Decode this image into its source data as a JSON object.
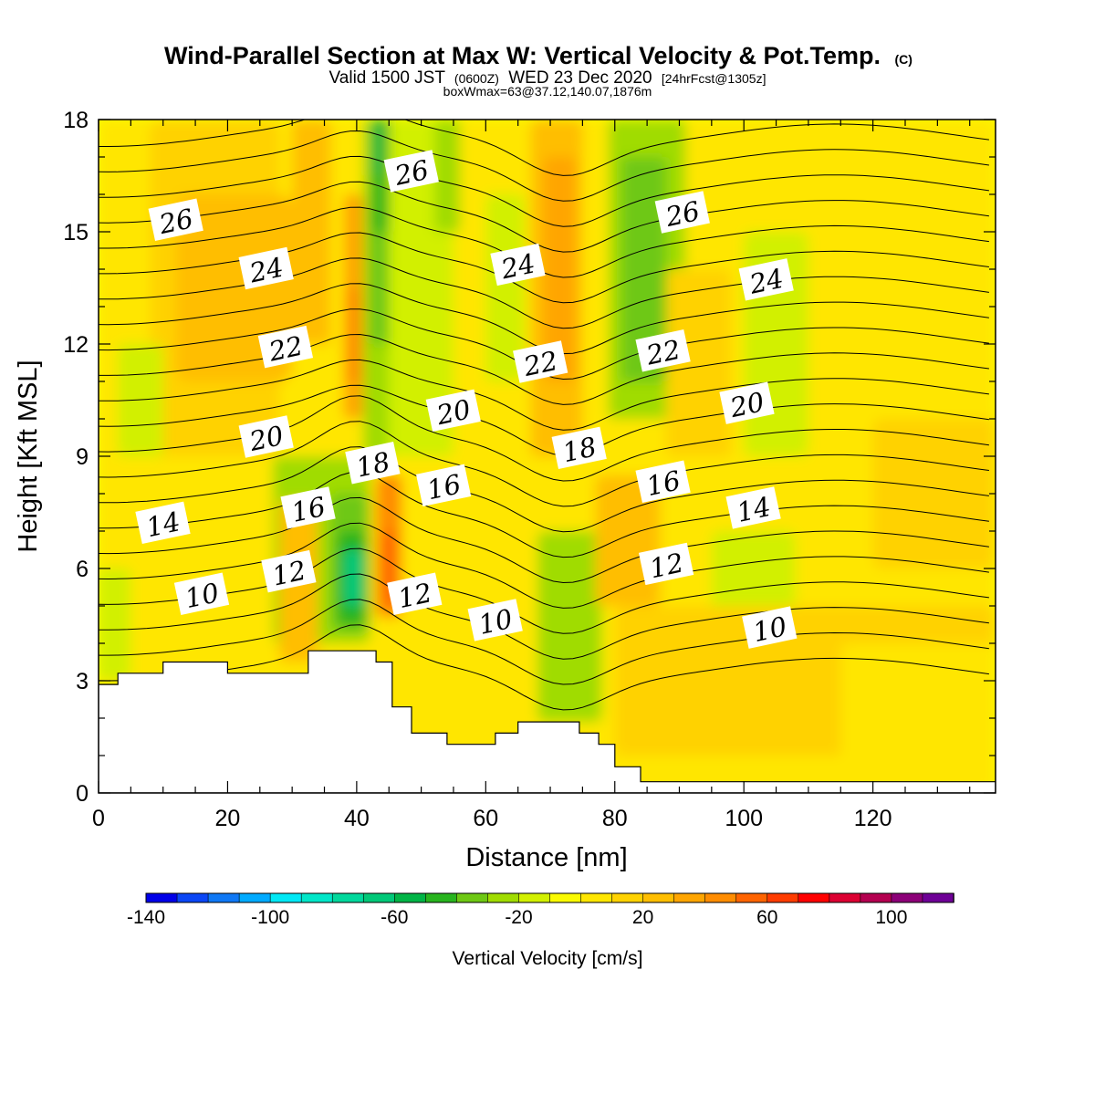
{
  "header": {
    "title_main": "Wind-Parallel Section at Max W: Vertical Velocity & Pot.Temp.",
    "title_mark": "(C)",
    "valid_a": "Valid 1500 JST",
    "valid_z": "(0600Z)",
    "valid_b": "WED 23 Dec 2020",
    "valid_fcst": "[24hrFcst@1305z]",
    "boxinfo": "boxWmax=63@37.12,140.07,1876m"
  },
  "chart_data": {
    "type": "heatmap",
    "xlabel": "Distance [nm]",
    "ylabel": "Height [Kft MSL]",
    "xlim": [
      0,
      139
    ],
    "ylim": [
      0,
      18
    ],
    "x_ticks": [
      0,
      20,
      40,
      60,
      80,
      100,
      120
    ],
    "y_ticks": [
      0,
      3,
      6,
      9,
      12,
      15,
      18
    ],
    "colorbar": {
      "label": "Vertical Velocity [cm/s]",
      "min": -140,
      "max": 120,
      "step": 10,
      "tick_values": [
        -140,
        -100,
        -60,
        -20,
        20,
        60,
        100
      ],
      "colors": [
        "#0000e8",
        "#0a46f5",
        "#0f78f5",
        "#00aaff",
        "#00e8f5",
        "#00e6c8",
        "#00d89c",
        "#00c878",
        "#00b446",
        "#28b41e",
        "#6ec814",
        "#a0dc00",
        "#d2f000",
        "#fafa00",
        "#ffe600",
        "#ffd200",
        "#ffbe00",
        "#ffa500",
        "#ff8c00",
        "#ff6400",
        "#ff3c00",
        "#ff0000",
        "#dc0032",
        "#b40050",
        "#8c0078",
        "#6e0096"
      ]
    },
    "theta_contour_labels": [
      {
        "value": "26",
        "x": 12,
        "y": 15.3
      },
      {
        "value": "24",
        "x": 26,
        "y": 14.0
      },
      {
        "value": "22",
        "x": 29,
        "y": 11.9
      },
      {
        "value": "20",
        "x": 26,
        "y": 9.5
      },
      {
        "value": "16",
        "x": 32.5,
        "y": 7.6
      },
      {
        "value": "14",
        "x": 10,
        "y": 7.2
      },
      {
        "value": "12",
        "x": 29.5,
        "y": 5.9
      },
      {
        "value": "10",
        "x": 16,
        "y": 5.3
      },
      {
        "value": "18",
        "x": 42.5,
        "y": 8.8
      },
      {
        "value": "26",
        "x": 48.5,
        "y": 16.6
      },
      {
        "value": "24",
        "x": 65,
        "y": 14.1
      },
      {
        "value": "22",
        "x": 68.5,
        "y": 11.5
      },
      {
        "value": "20",
        "x": 55,
        "y": 10.2
      },
      {
        "value": "16",
        "x": 53.5,
        "y": 8.2
      },
      {
        "value": "12",
        "x": 49,
        "y": 5.3
      },
      {
        "value": "10",
        "x": 61.5,
        "y": 4.6
      },
      {
        "value": "18",
        "x": 74.5,
        "y": 9.2
      },
      {
        "value": "26",
        "x": 90.5,
        "y": 15.5
      },
      {
        "value": "24",
        "x": 103.5,
        "y": 13.7
      },
      {
        "value": "22",
        "x": 87.5,
        "y": 11.8
      },
      {
        "value": "20",
        "x": 100.5,
        "y": 10.4
      },
      {
        "value": "16",
        "x": 87.5,
        "y": 8.3
      },
      {
        "value": "14",
        "x": 101.5,
        "y": 7.6
      },
      {
        "value": "12",
        "x": 88,
        "y": 6.1
      },
      {
        "value": "10",
        "x": 104,
        "y": 4.4
      }
    ],
    "terrain_profile": [
      [
        0,
        2.9
      ],
      [
        3,
        2.9
      ],
      [
        3,
        3.2
      ],
      [
        10,
        3.2
      ],
      [
        10,
        3.5
      ],
      [
        20,
        3.5
      ],
      [
        20,
        3.2
      ],
      [
        32.5,
        3.2
      ],
      [
        32.5,
        3.8
      ],
      [
        43,
        3.8
      ],
      [
        43,
        3.5
      ],
      [
        45.5,
        3.5
      ],
      [
        45.5,
        2.3
      ],
      [
        48.5,
        2.3
      ],
      [
        48.5,
        1.6
      ],
      [
        54,
        1.6
      ],
      [
        54,
        1.3
      ],
      [
        61.5,
        1.3
      ],
      [
        61.5,
        1.6
      ],
      [
        65,
        1.6
      ],
      [
        65,
        1.9
      ],
      [
        74.5,
        1.9
      ],
      [
        74.5,
        1.6
      ],
      [
        77.5,
        1.6
      ],
      [
        77.5,
        1.3
      ],
      [
        80,
        1.3
      ],
      [
        80,
        0.7
      ],
      [
        84,
        0.7
      ],
      [
        84,
        0.3
      ],
      [
        139,
        0.3
      ]
    ]
  }
}
